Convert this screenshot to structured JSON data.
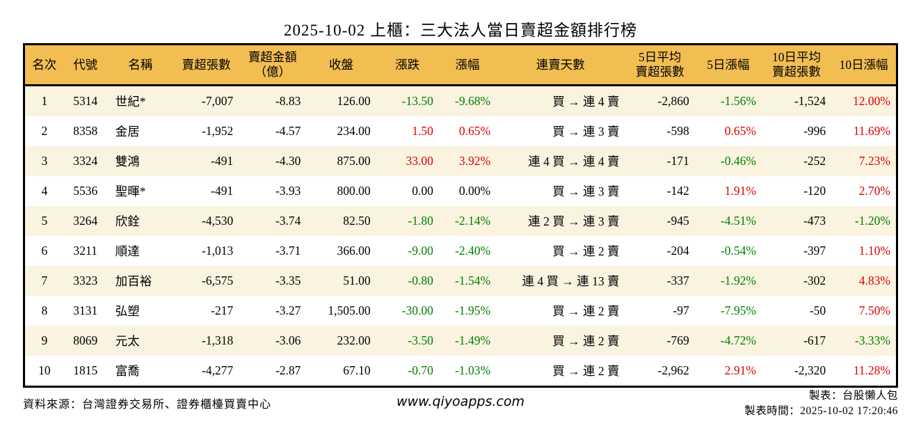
{
  "colors": {
    "up": "#dd0000",
    "down": "#008000",
    "header_bg": "#f2be52",
    "row_alt_bg": "#faf3e0"
  },
  "chart_data": {
    "type": "table",
    "title": "2025-10-02 上櫃：三大法人當日賣超金額排行榜",
    "columns": [
      {
        "id": "rank",
        "lines": [
          "名次"
        ]
      },
      {
        "id": "code",
        "lines": [
          "代號"
        ]
      },
      {
        "id": "name",
        "lines": [
          "名稱"
        ]
      },
      {
        "id": "sell-volume",
        "lines": [
          "賣超張數"
        ]
      },
      {
        "id": "sell-amount",
        "lines": [
          "賣超金額",
          "（億）"
        ]
      },
      {
        "id": "close",
        "lines": [
          "收盤"
        ]
      },
      {
        "id": "change",
        "lines": [
          "漲跌"
        ]
      },
      {
        "id": "change-pct",
        "lines": [
          "漲幅"
        ]
      },
      {
        "id": "sell-streak",
        "lines": [
          "連賣天數"
        ]
      },
      {
        "id": "avg5-volume",
        "lines": [
          "5日平均",
          "賣超張數"
        ]
      },
      {
        "id": "pct5",
        "lines": [
          "5日漲幅"
        ]
      },
      {
        "id": "avg10-volume",
        "lines": [
          "10日平均",
          "賣超張數"
        ]
      },
      {
        "id": "pct10",
        "lines": [
          "10日漲幅"
        ]
      }
    ],
    "rows": [
      {
        "cells": [
          "1",
          "5314",
          "世紀*",
          "-7,007",
          "-8.83",
          "126.00",
          "-13.50",
          "-9.68%",
          "買 → 連 4 賣",
          "-2,860",
          "-1.56%",
          "-1,524",
          "12.00%"
        ],
        "tones": [
          "",
          "",
          "",
          "",
          "",
          "",
          "down",
          "down",
          "",
          "",
          "down",
          "",
          "up"
        ]
      },
      {
        "cells": [
          "2",
          "8358",
          "金居",
          "-1,952",
          "-4.57",
          "234.00",
          "1.50",
          "0.65%",
          "買 → 連 3 賣",
          "-598",
          "0.65%",
          "-996",
          "11.69%"
        ],
        "tones": [
          "",
          "",
          "",
          "",
          "",
          "",
          "up",
          "up",
          "",
          "",
          "up",
          "",
          "up"
        ]
      },
      {
        "cells": [
          "3",
          "3324",
          "雙鴻",
          "-491",
          "-4.30",
          "875.00",
          "33.00",
          "3.92%",
          "連 4 買 → 連 4 賣",
          "-171",
          "-0.46%",
          "-252",
          "7.23%"
        ],
        "tones": [
          "",
          "",
          "",
          "",
          "",
          "",
          "up",
          "up",
          "",
          "",
          "down",
          "",
          "up"
        ]
      },
      {
        "cells": [
          "4",
          "5536",
          "聖暉*",
          "-491",
          "-3.93",
          "800.00",
          "0.00",
          "0.00%",
          "買 → 連 3 賣",
          "-142",
          "1.91%",
          "-120",
          "2.70%"
        ],
        "tones": [
          "",
          "",
          "",
          "",
          "",
          "",
          "",
          "",
          "",
          "",
          "up",
          "",
          "up"
        ]
      },
      {
        "cells": [
          "5",
          "3264",
          "欣銓",
          "-4,530",
          "-3.74",
          "82.50",
          "-1.80",
          "-2.14%",
          "連 2 買 → 連 3 賣",
          "-945",
          "-4.51%",
          "-473",
          "-1.20%"
        ],
        "tones": [
          "",
          "",
          "",
          "",
          "",
          "",
          "down",
          "down",
          "",
          "",
          "down",
          "",
          "down"
        ]
      },
      {
        "cells": [
          "6",
          "3211",
          "順達",
          "-1,013",
          "-3.71",
          "366.00",
          "-9.00",
          "-2.40%",
          "買 → 連 2 賣",
          "-204",
          "-0.54%",
          "-397",
          "1.10%"
        ],
        "tones": [
          "",
          "",
          "",
          "",
          "",
          "",
          "down",
          "down",
          "",
          "",
          "down",
          "",
          "up"
        ]
      },
      {
        "cells": [
          "7",
          "3323",
          "加百裕",
          "-6,575",
          "-3.35",
          "51.00",
          "-0.80",
          "-1.54%",
          "連 4 買 → 連 13 賣",
          "-337",
          "-1.92%",
          "-302",
          "4.83%"
        ],
        "tones": [
          "",
          "",
          "",
          "",
          "",
          "",
          "down",
          "down",
          "",
          "",
          "down",
          "",
          "up"
        ]
      },
      {
        "cells": [
          "8",
          "3131",
          "弘塑",
          "-217",
          "-3.27",
          "1,505.00",
          "-30.00",
          "-1.95%",
          "買 → 連 2 賣",
          "-97",
          "-7.95%",
          "-50",
          "7.50%"
        ],
        "tones": [
          "",
          "",
          "",
          "",
          "",
          "",
          "down",
          "down",
          "",
          "",
          "down",
          "",
          "up"
        ]
      },
      {
        "cells": [
          "9",
          "8069",
          "元太",
          "-1,318",
          "-3.06",
          "232.00",
          "-3.50",
          "-1.49%",
          "買 → 連 2 賣",
          "-769",
          "-4.72%",
          "-617",
          "-3.33%"
        ],
        "tones": [
          "",
          "",
          "",
          "",
          "",
          "",
          "down",
          "down",
          "",
          "",
          "down",
          "",
          "down"
        ]
      },
      {
        "cells": [
          "10",
          "1815",
          "富喬",
          "-4,277",
          "-2.87",
          "67.10",
          "-0.70",
          "-1.03%",
          "買 → 連 2 賣",
          "-2,962",
          "2.91%",
          "-2,320",
          "11.28%"
        ],
        "tones": [
          "",
          "",
          "",
          "",
          "",
          "",
          "down",
          "down",
          "",
          "",
          "up",
          "",
          "up"
        ]
      }
    ]
  },
  "footer": {
    "source": "資料來源：台灣證券交易所、證券櫃檯買賣中心",
    "website": "www.qiyoapps.com",
    "made_by": "製表：台股懶人包",
    "made_time": "製表時間：2025-10-02 17:20:46"
  }
}
